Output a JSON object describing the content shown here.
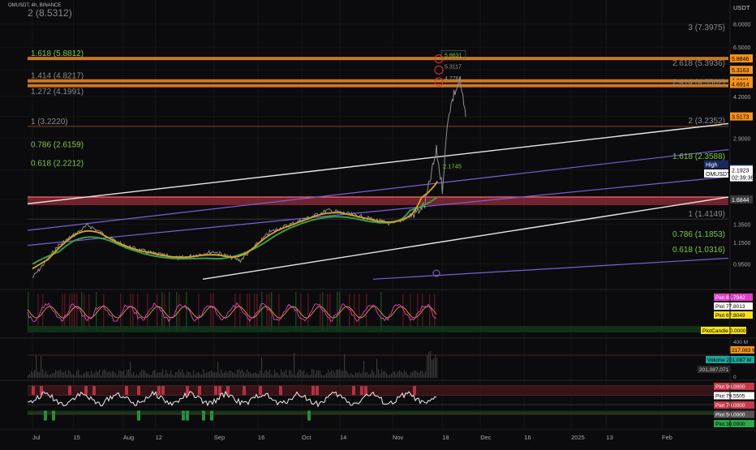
{
  "header": {
    "symbol_line": "OMUSDT, 4h, BINANCE",
    "top_level": "2 (8.5312)",
    "currency": "USDT"
  },
  "colors": {
    "background": "#0b0b0d",
    "fib_green": "#7cc84a",
    "fib_orange": "#f08a24",
    "fib_gray": "#8a8a8a",
    "red_band": "#c7394a",
    "channel_white": "#e8e8e8",
    "channel_purple": "#7b5fd6",
    "price_line": "#8f8f8f",
    "ma_green": "#3e9b4a",
    "ma_orange": "#d9a526",
    "label_orange": "#f7931a",
    "label_black_bg": "#ffffff",
    "volume_teal": "#1aa89a",
    "rsi_pink": "#e040c8"
  },
  "chart_data": [
    {
      "type": "line",
      "title": "OMUSDT, 4h, BINANCE",
      "ylabel": "USDT",
      "yscale": "log",
      "ylim": [
        0.82,
        9.6
      ],
      "x_ticks": [
        "Jul",
        "15",
        "Aug",
        "12",
        "Sep",
        "16",
        "Oct",
        "14",
        "Nov",
        "18",
        "Dec",
        "16",
        "2025",
        "13",
        "Feb"
      ],
      "y_ticks": [
        "8.0000",
        "6.5000",
        "5.3163",
        "4.2000",
        "3.5173",
        "2.9000",
        "2.1923",
        "1.6844",
        "1.3500",
        "1.1500",
        "0.9500"
      ],
      "price_series_approx": {
        "name": "OMUSDT",
        "x": [
          "Jul 01",
          "Jul 10",
          "Jul 20",
          "Aug 01",
          "Aug 10",
          "Aug 20",
          "Sep 01",
          "Sep 10",
          "Sep 20",
          "Oct 01",
          "Oct 10",
          "Oct 20",
          "Nov 01",
          "Nov 08",
          "Nov 12",
          "Nov 16",
          "Nov 18",
          "Nov 20",
          "Nov 22",
          "Nov 24",
          "Nov 26"
        ],
        "y": [
          0.84,
          1.12,
          1.34,
          1.12,
          1.05,
          1.0,
          1.06,
          0.98,
          1.26,
          1.4,
          1.53,
          1.46,
          1.35,
          1.47,
          1.6,
          2.6,
          1.85,
          3.55,
          4.3,
          4.8,
          3.5
        ]
      },
      "fib_levels_left": [
        {
          "label": "1.618 (5.8812)",
          "value": 5.8812
        },
        {
          "label": "1.414 (4.8217)",
          "value": 4.8217
        },
        {
          "label": "1.272 (4.1991)",
          "value": 4.1991
        },
        {
          "label": "1 (3.2220)",
          "value": 3.222
        },
        {
          "label": "0.786 (2.6159)",
          "value": 2.6159
        },
        {
          "label": "0.618 (2.2212)",
          "value": 2.2212
        }
      ],
      "fib_levels_right": [
        {
          "label": "3 (7.3975)",
          "value": 7.3975
        },
        {
          "label": "2.618 (5.3936)",
          "value": 5.3936
        },
        {
          "label": "2.414 (4.5562)",
          "value": 4.5562
        },
        {
          "label": "2 (3.2352)",
          "value": 3.2352
        },
        {
          "label": "1.618 (2.3588)",
          "value": 2.3588
        },
        {
          "label": "1 (1.4149)",
          "value": 1.4149
        },
        {
          "label": "0.786 (1.1853)",
          "value": 1.1853
        },
        {
          "label": "0.618 (1.0316)",
          "value": 1.0316
        }
      ],
      "price_scale_labels": [
        {
          "text": "5.8846",
          "value": 5.8846,
          "style": "orange"
        },
        {
          "text": "5.3163",
          "value": 5.3163,
          "style": "orange"
        },
        {
          "text": "4.8391",
          "value": 4.8391,
          "style": "orange"
        },
        {
          "text": "4.6914",
          "value": 4.6914,
          "style": "orange"
        },
        {
          "text": "3.5173",
          "value": 3.5173,
          "style": "orange"
        },
        {
          "text": "High",
          "value": 2.3,
          "style": "navy"
        },
        {
          "text": "2.2180",
          "value": 2.218,
          "style": "navy"
        },
        {
          "text": "OMUSDT",
          "value": 2.12,
          "style": "white"
        },
        {
          "text": "2.1923",
          "value": 2.1923,
          "style": "white"
        },
        {
          "text": "02:39:36",
          "value": 2.05,
          "style": "white"
        },
        {
          "text": "1.6844",
          "value": 1.6844,
          "style": "gray"
        }
      ],
      "annotations": [
        "5.8631",
        "5.3117",
        "4.7761",
        "2.1745"
      ]
    },
    {
      "type": "line",
      "title": "",
      "series": [
        {
          "name": "Plot",
          "value": "81.7942"
        },
        {
          "name": "Plot",
          "value": "77.8013"
        },
        {
          "name": "Plot",
          "value": "67.8049"
        },
        {
          "name": "PlotCandle",
          "value": "0.0000"
        }
      ]
    },
    {
      "type": "bar",
      "title": "",
      "y_ticks": [
        "400 M",
        "0"
      ],
      "series": [
        {
          "name": "Volume",
          "value": "201.087 M"
        }
      ],
      "labels": [
        "217.083 M",
        "201,087,071"
      ]
    },
    {
      "type": "line",
      "title": "",
      "series": [
        {
          "name": "Plot",
          "value": "90.0000"
        },
        {
          "name": "Plot",
          "value": "79.5505"
        },
        {
          "name": "Plot",
          "value": "70.0000"
        },
        {
          "name": "Plot",
          "value": "50.0000"
        },
        {
          "name": "Plot",
          "value": "30.0000"
        }
      ]
    }
  ]
}
